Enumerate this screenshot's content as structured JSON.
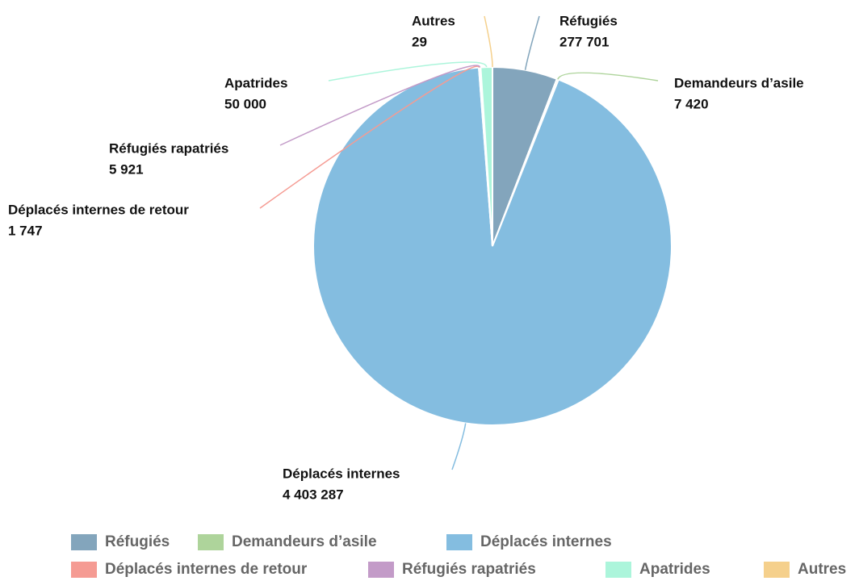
{
  "chart_data": {
    "type": "pie",
    "categories": [
      "Réfugiés",
      "Demandeurs d’asile",
      "Déplacés internes",
      "Déplacés internes de retour",
      "Réfugiés rapatriés",
      "Apatrides",
      "Autres"
    ],
    "values": [
      277701,
      7420,
      4403287,
      1747,
      5921,
      50000,
      29
    ],
    "value_labels": [
      "277 701",
      "7 420",
      "4 403 287",
      "1 747",
      "5 921",
      "50 000",
      "29"
    ],
    "colors": [
      "#83a5bc",
      "#aed49b",
      "#84bde0",
      "#f59b93",
      "#c39bc8",
      "#acf5db",
      "#f5d08c"
    ]
  }
}
